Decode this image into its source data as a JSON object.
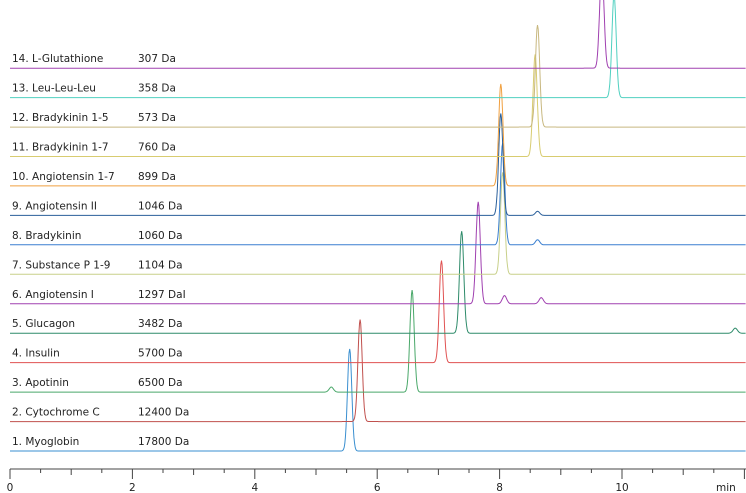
{
  "chart_data": {
    "type": "line",
    "xlabel": "min",
    "xlim": [
      0,
      11.9
    ],
    "x_ticks": [
      0,
      2,
      4,
      6,
      8,
      10
    ],
    "x_tick_labels": [
      "0",
      "2",
      "4",
      "6",
      "8",
      "10"
    ],
    "grid": false,
    "series": [
      {
        "name": "1. Myoglobin",
        "mass": "17800 Da",
        "color": "#3a8fd0",
        "peaks": [
          {
            "rt": 5.55,
            "height": 1.0
          }
        ]
      },
      {
        "name": "2. Cytochrome C",
        "mass": "12400 Da",
        "color": "#c0504d",
        "peaks": [
          {
            "rt": 5.72,
            "height": 1.0
          }
        ]
      },
      {
        "name": "3. Apotinin",
        "mass": "6500 Da",
        "color": "#4aa86a",
        "peaks": [
          {
            "rt": 5.25,
            "height": 0.05
          },
          {
            "rt": 6.57,
            "height": 1.0
          }
        ]
      },
      {
        "name": "4. Insulin",
        "mass": "5700 Da",
        "color": "#e05252",
        "peaks": [
          {
            "rt": 7.05,
            "height": 1.0
          }
        ]
      },
      {
        "name": "5. Glucagon",
        "mass": "3482 Da",
        "color": "#2e8b6a",
        "peaks": [
          {
            "rt": 7.38,
            "height": 1.0
          },
          {
            "rt": 11.85,
            "height": 0.05
          }
        ]
      },
      {
        "name": "6. Angiotensin I",
        "mass": "1297 DaI",
        "color": "#a040b0",
        "peaks": [
          {
            "rt": 7.65,
            "height": 1.0
          },
          {
            "rt": 8.08,
            "height": 0.08
          },
          {
            "rt": 8.68,
            "height": 0.06
          }
        ]
      },
      {
        "name": "7. Substance P 1-9",
        "mass": "1104 Da",
        "color": "#c8d08a",
        "peaks": [
          {
            "rt": 8.05,
            "height": 1.0
          }
        ]
      },
      {
        "name": "8. Bradykinin",
        "mass": "1060 Da",
        "color": "#3a7fd0",
        "peaks": [
          {
            "rt": 8.05,
            "height": 1.0
          },
          {
            "rt": 8.62,
            "height": 0.05
          }
        ]
      },
      {
        "name": "9. Angiotensin II",
        "mass": "1046 Da",
        "color": "#2a5f9a",
        "peaks": [
          {
            "rt": 8.02,
            "height": 1.0
          },
          {
            "rt": 8.62,
            "height": 0.04
          }
        ]
      },
      {
        "name": "10. Angiotensin 1-7",
        "mass": "899 Da",
        "color": "#f0a040",
        "peaks": [
          {
            "rt": 8.02,
            "height": 1.0
          }
        ]
      },
      {
        "name": "11. Bradykinin 1-7",
        "mass": "760 Da",
        "color": "#d8cc70",
        "peaks": [
          {
            "rt": 8.58,
            "height": 1.0
          }
        ]
      },
      {
        "name": "12. Bradykinin 1-5",
        "mass": "573 Da",
        "color": "#c8b880",
        "peaks": [
          {
            "rt": 8.62,
            "height": 1.0
          }
        ]
      },
      {
        "name": "13. Leu-Leu-Leu",
        "mass": "358 Da",
        "color": "#50d0c0",
        "peaks": [
          {
            "rt": 9.87,
            "height": 1.0
          }
        ]
      },
      {
        "name": "14. L-Glutathione",
        "mass": "307 Da",
        "color": "#a040b0",
        "peaks": [
          {
            "rt": 9.67,
            "height": 1.0
          }
        ]
      }
    ]
  }
}
